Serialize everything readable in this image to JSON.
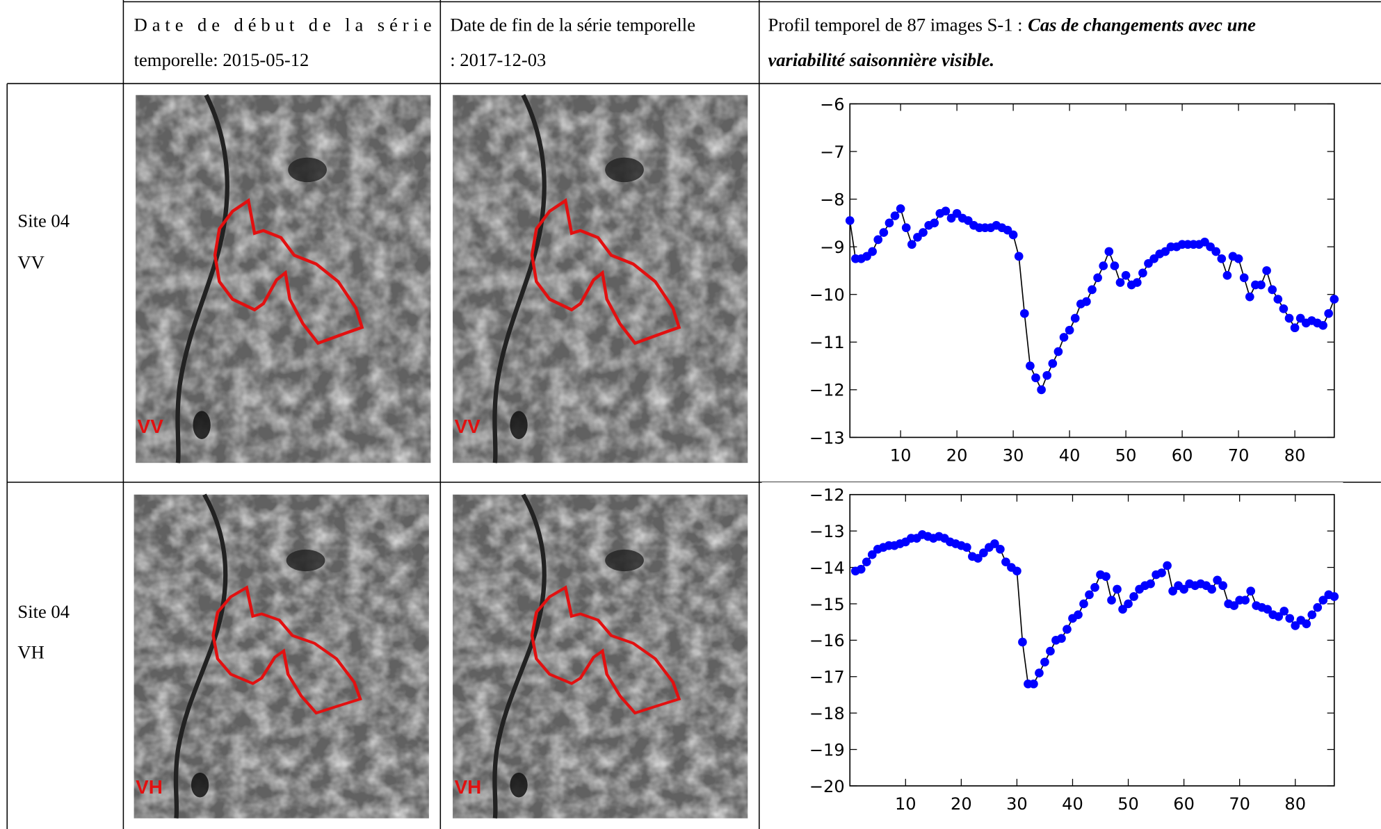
{
  "table": {
    "header": [
      {
        "lines": [
          "Date de début de la série",
          "temporelle: 2015-05-12"
        ]
      },
      {
        "lines": [
          "Date de fin de la série temporelle",
          ": 2017-12-03"
        ]
      },
      {
        "intro": "Profil temporel de 87 images S-1 :",
        "emphasis_lines": [
          "Cas de changements avec une",
          "variabilité saisonnière visible."
        ]
      }
    ],
    "rows": [
      {
        "site": "Site 04",
        "polarization": "VV",
        "image_labels": [
          "VV",
          "VV"
        ]
      },
      {
        "site": "Site 04",
        "polarization": "VH",
        "image_labels": [
          "VH",
          "VH"
        ]
      }
    ]
  },
  "chart_data": [
    {
      "type": "line",
      "color": "#0000ff",
      "line_color": "#000000",
      "marker": "circle",
      "x": [
        1,
        2,
        3,
        4,
        5,
        6,
        7,
        8,
        9,
        10,
        11,
        12,
        13,
        14,
        15,
        16,
        17,
        18,
        19,
        20,
        21,
        22,
        23,
        24,
        25,
        26,
        27,
        28,
        29,
        30,
        31,
        32,
        33,
        34,
        35,
        36,
        37,
        38,
        39,
        40,
        41,
        42,
        43,
        44,
        45,
        46,
        47,
        48,
        49,
        50,
        51,
        52,
        53,
        54,
        55,
        56,
        57,
        58,
        59,
        60,
        61,
        62,
        63,
        64,
        65,
        66,
        67,
        68,
        69,
        70,
        71,
        72,
        73,
        74,
        75,
        76,
        77,
        78,
        79,
        80,
        81,
        82,
        83,
        84,
        85,
        86,
        87
      ],
      "values": [
        -8.45,
        -9.25,
        -9.25,
        -9.2,
        -9.1,
        -8.85,
        -8.7,
        -8.5,
        -8.35,
        -8.2,
        -8.6,
        -8.95,
        -8.8,
        -8.7,
        -8.55,
        -8.5,
        -8.3,
        -8.25,
        -8.4,
        -8.3,
        -8.4,
        -8.45,
        -8.55,
        -8.6,
        -8.6,
        -8.6,
        -8.55,
        -8.6,
        -8.65,
        -8.75,
        -9.2,
        -10.4,
        -11.5,
        -11.75,
        -12.0,
        -11.7,
        -11.45,
        -11.2,
        -10.9,
        -10.75,
        -10.5,
        -10.2,
        -10.15,
        -9.9,
        -9.65,
        -9.4,
        -9.1,
        -9.4,
        -9.75,
        -9.6,
        -9.8,
        -9.75,
        -9.55,
        -9.35,
        -9.25,
        -9.15,
        -9.1,
        -9.0,
        -9.0,
        -8.95,
        -8.95,
        -8.95,
        -8.95,
        -8.9,
        -9.0,
        -9.1,
        -9.25,
        -9.6,
        -9.2,
        -9.25,
        -9.65,
        -10.05,
        -9.8,
        -9.8,
        -9.5,
        -9.9,
        -10.1,
        -10.3,
        -10.5,
        -10.7,
        -10.5,
        -10.6,
        -10.55,
        -10.6,
        -10.65,
        -10.4,
        -10.1
      ],
      "xlim": [
        1,
        87
      ],
      "xticks": [
        10,
        20,
        30,
        40,
        50,
        60,
        70,
        80
      ],
      "ylim": [
        -13,
        -6
      ],
      "yticks": [
        {
          "value": -13,
          "label": "−13"
        },
        {
          "value": -12,
          "label": "−12"
        },
        {
          "value": -11,
          "label": "−11"
        },
        {
          "value": -10,
          "label": "−10"
        },
        {
          "value": -9,
          "label": "−9"
        },
        {
          "value": -8,
          "label": "−8"
        },
        {
          "value": -7,
          "label": "−7"
        },
        {
          "value": -6,
          "label": "−6"
        }
      ]
    },
    {
      "type": "line",
      "color": "#0000ff",
      "line_color": "#000000",
      "marker": "circle",
      "x": [
        1,
        2,
        3,
        4,
        5,
        6,
        7,
        8,
        9,
        10,
        11,
        12,
        13,
        14,
        15,
        16,
        17,
        18,
        19,
        20,
        21,
        22,
        23,
        24,
        25,
        26,
        27,
        28,
        29,
        30,
        31,
        32,
        33,
        34,
        35,
        36,
        37,
        38,
        39,
        40,
        41,
        42,
        43,
        44,
        45,
        46,
        47,
        48,
        49,
        50,
        51,
        52,
        53,
        54,
        55,
        56,
        57,
        58,
        59,
        60,
        61,
        62,
        63,
        64,
        65,
        66,
        67,
        68,
        69,
        70,
        71,
        72,
        73,
        74,
        75,
        76,
        77,
        78,
        79,
        80,
        81,
        82,
        83,
        84,
        85,
        86,
        87
      ],
      "values": [
        -14.1,
        -14.05,
        -13.85,
        -13.65,
        -13.5,
        -13.45,
        -13.4,
        -13.4,
        -13.35,
        -13.3,
        -13.2,
        -13.2,
        -13.1,
        -13.15,
        -13.2,
        -13.15,
        -13.2,
        -13.3,
        -13.35,
        -13.4,
        -13.45,
        -13.7,
        -13.75,
        -13.6,
        -13.45,
        -13.35,
        -13.5,
        -13.85,
        -14.0,
        -14.1,
        -16.05,
        -17.2,
        -17.2,
        -16.9,
        -16.6,
        -16.3,
        -16.0,
        -15.95,
        -15.7,
        -15.4,
        -15.3,
        -15.0,
        -14.75,
        -14.55,
        -14.2,
        -14.25,
        -14.9,
        -14.6,
        -15.15,
        -15.0,
        -14.8,
        -14.6,
        -14.5,
        -14.45,
        -14.2,
        -14.15,
        -13.95,
        -14.65,
        -14.5,
        -14.6,
        -14.45,
        -14.5,
        -14.45,
        -14.5,
        -14.6,
        -14.35,
        -14.5,
        -15.0,
        -15.05,
        -14.9,
        -14.9,
        -14.65,
        -15.05,
        -15.1,
        -15.15,
        -15.3,
        -15.35,
        -15.2,
        -15.4,
        -15.6,
        -15.45,
        -15.55,
        -15.3,
        -15.1,
        -14.9,
        -14.75,
        -14.8
      ],
      "xlim": [
        0,
        87
      ],
      "xticks": [
        10,
        20,
        30,
        40,
        50,
        60,
        70,
        80
      ],
      "ylim": [
        -20,
        -12
      ],
      "yticks": [
        {
          "value": -20,
          "label": "−20"
        },
        {
          "value": -19,
          "label": "−19"
        },
        {
          "value": -18,
          "label": "−18"
        },
        {
          "value": -17,
          "label": "−17"
        },
        {
          "value": -16,
          "label": "−16"
        },
        {
          "value": -15,
          "label": "−15"
        },
        {
          "value": -14,
          "label": "−14"
        },
        {
          "value": -13,
          "label": "−13"
        },
        {
          "value": -12,
          "label": "−12"
        }
      ]
    }
  ]
}
